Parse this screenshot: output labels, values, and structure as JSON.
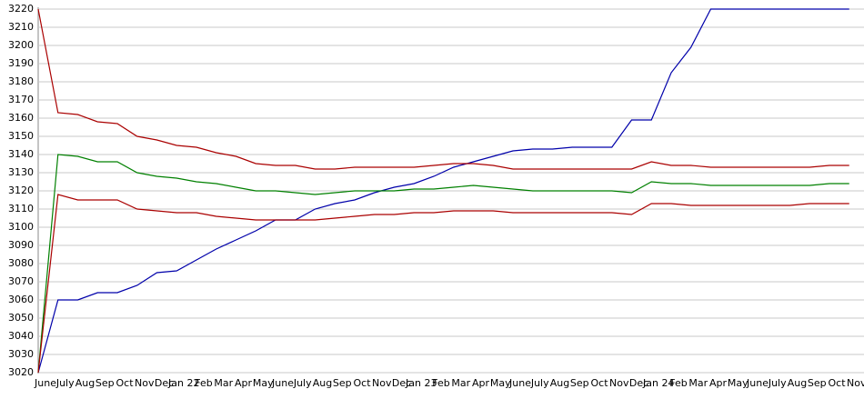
{
  "chart_data": {
    "type": "line",
    "categories": [
      "June",
      "July",
      "Aug",
      "Sep",
      "Oct",
      "Nov",
      "Dec",
      "Jan 22",
      "Feb",
      "Mar",
      "Apr",
      "May",
      "June",
      "July",
      "Aug",
      "Sep",
      "Oct",
      "Nov",
      "Dec",
      "Jan 23",
      "Feb",
      "Mar",
      "Apr",
      "May",
      "June",
      "July",
      "Aug",
      "Sep",
      "Oct",
      "Nov",
      "Dec",
      "Jan 24",
      "Feb",
      "Mar",
      "Apr",
      "May",
      "June",
      "July",
      "Aug",
      "Sep",
      "Oct",
      "Nov"
    ],
    "series": [
      {
        "color": "#0000aa",
        "values": [
          3020,
          3060,
          3060,
          3064,
          3064,
          3068,
          3075,
          3076,
          3082,
          3088,
          3093,
          3098,
          3104,
          3104,
          3110,
          3113,
          3115,
          3119,
          3122,
          3124,
          3128,
          3133,
          3136,
          3139,
          3142,
          3143,
          3143,
          3144,
          3144,
          3144,
          3159,
          3159,
          3185,
          3199,
          3220,
          3220,
          3220,
          3220,
          3220,
          3220,
          3220,
          3220
        ]
      },
      {
        "color": "#aa0000",
        "values": [
          3220,
          3163,
          3162,
          3158,
          3157,
          3150,
          3148,
          3145,
          3144,
          3141,
          3139,
          3135,
          3134,
          3134,
          3132,
          3132,
          3133,
          3133,
          3133,
          3133,
          3134,
          3135,
          3135,
          3134,
          3132,
          3132,
          3132,
          3132,
          3132,
          3132,
          3132,
          3136,
          3134,
          3134,
          3133,
          3133,
          3133,
          3133,
          3133,
          3133,
          3134,
          3134
        ]
      },
      {
        "color": "#008000",
        "values": [
          3020,
          3140,
          3139,
          3136,
          3136,
          3130,
          3128,
          3127,
          3125,
          3124,
          3122,
          3120,
          3120,
          3119,
          3118,
          3119,
          3120,
          3120,
          3120,
          3121,
          3121,
          3122,
          3123,
          3122,
          3121,
          3120,
          3120,
          3120,
          3120,
          3120,
          3119,
          3125,
          3124,
          3124,
          3123,
          3123,
          3123,
          3123,
          3123,
          3123,
          3124,
          3124
        ]
      },
      {
        "color": "#aa0000",
        "values": [
          3020,
          3118,
          3115,
          3115,
          3115,
          3110,
          3109,
          3108,
          3108,
          3106,
          3105,
          3104,
          3104,
          3104,
          3104,
          3105,
          3106,
          3107,
          3107,
          3108,
          3108,
          3109,
          3109,
          3109,
          3108,
          3108,
          3108,
          3108,
          3108,
          3108,
          3107,
          3113,
          3113,
          3112,
          3112,
          3112,
          3112,
          3112,
          3112,
          3113,
          3113,
          3113
        ]
      }
    ],
    "ylim": [
      3020,
      3220
    ],
    "yticks": [
      3020,
      3030,
      3040,
      3050,
      3060,
      3070,
      3080,
      3090,
      3100,
      3110,
      3120,
      3130,
      3140,
      3150,
      3160,
      3170,
      3180,
      3190,
      3200,
      3210,
      3220
    ],
    "grid": true
  }
}
